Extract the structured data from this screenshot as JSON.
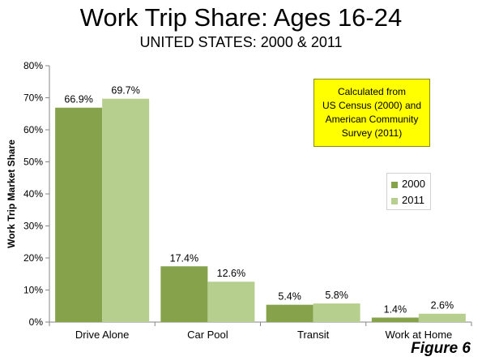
{
  "header": {
    "title": "Work Trip Share: Ages 16-24",
    "subtitle": "UNITED STATES: 2000 & 2011"
  },
  "note": {
    "lines": [
      "Calculated from",
      "US Census (2000) and",
      "American Community",
      "Survey (2011)"
    ]
  },
  "figure_label": "Figure 6",
  "chart_data": {
    "type": "bar",
    "title": "Work Trip Share: Ages 16-24",
    "subtitle": "UNITED STATES: 2000 & 2011",
    "xlabel": "",
    "ylabel": "Work Trip Market Share",
    "categories": [
      "Drive Alone",
      "Car Pool",
      "Transit",
      "Work at Home"
    ],
    "series": [
      {
        "name": "2000",
        "values": [
          66.9,
          17.4,
          5.4,
          1.4
        ],
        "labels": [
          "66.9%",
          "17.4%",
          "5.4%",
          "1.4%"
        ],
        "color": "#86a34c"
      },
      {
        "name": "2011",
        "values": [
          69.7,
          12.6,
          5.8,
          2.6
        ],
        "labels": [
          "69.7%",
          "12.6%",
          "5.8%",
          "2.6%"
        ],
        "color": "#b7cf8e"
      }
    ],
    "ylim": [
      0,
      80
    ],
    "yticks": [
      0,
      10,
      20,
      30,
      40,
      50,
      60,
      70,
      80
    ],
    "ytick_labels": [
      "0%",
      "10%",
      "20%",
      "30%",
      "40%",
      "50%",
      "60%",
      "70%",
      "80%"
    ],
    "grid": false,
    "legend_position": "right"
  }
}
